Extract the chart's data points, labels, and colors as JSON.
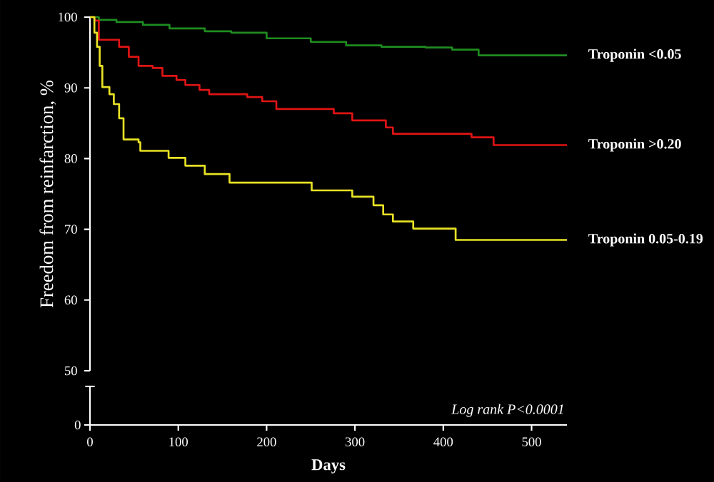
{
  "chart_data": {
    "type": "step",
    "xlim": [
      0,
      540
    ],
    "xticks": [
      0,
      100,
      200,
      300,
      400,
      500
    ],
    "ylim": [
      50,
      100
    ],
    "yticks": [
      50,
      60,
      70,
      80,
      90,
      100
    ],
    "xlabel": "Days",
    "ylabel": "Freedom from reinfarction, %",
    "annotations": [
      "Log rank P<0.0001",
      "0"
    ],
    "series": [
      {
        "name": "Troponin <0.05",
        "color": "#1f8c1f",
        "x": [
          0,
          10,
          30,
          60,
          90,
          130,
          160,
          200,
          250,
          290,
          330,
          380,
          410,
          440,
          540
        ],
        "values": [
          100,
          99.6,
          99.3,
          98.9,
          98.4,
          98.0,
          97.8,
          97.0,
          96.5,
          96.0,
          95.8,
          95.7,
          95.4,
          94.6,
          94.6
        ]
      },
      {
        "name": "Troponin >0.20",
        "color": "#e01414",
        "x": [
          0,
          5,
          10,
          33,
          44,
          55,
          71,
          82,
          98,
          108,
          124,
          135,
          178,
          195,
          211,
          276,
          297,
          335,
          343,
          432,
          457,
          540
        ],
        "values": [
          100,
          99.5,
          96.8,
          95.8,
          94.4,
          93.1,
          92.8,
          91.7,
          91.1,
          90.4,
          89.7,
          89.1,
          88.7,
          88.1,
          87.0,
          86.4,
          85.4,
          84.4,
          83.5,
          83.0,
          81.9,
          81.9
        ]
      },
      {
        "name": "Troponin 0.05-0.19",
        "color": "#e8e224",
        "x": [
          0,
          5,
          8,
          11,
          14,
          22,
          27,
          33,
          38,
          55,
          57,
          89,
          108,
          130,
          158,
          251,
          297,
          321,
          332,
          343,
          366,
          414,
          540
        ],
        "values": [
          100,
          97.8,
          95.8,
          93.1,
          90.1,
          89.1,
          87.7,
          85.7,
          82.7,
          82.3,
          81.1,
          80.1,
          79.0,
          77.8,
          76.6,
          75.5,
          74.6,
          73.4,
          72.1,
          71.1,
          70.1,
          68.5,
          68.5
        ]
      }
    ]
  }
}
